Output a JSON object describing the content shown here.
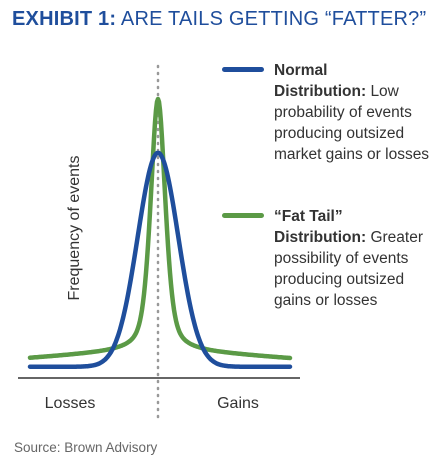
{
  "title_prefix": "EXHIBIT 1:",
  "title_main": "ARE TAILS GETTING “FATTER?”",
  "source": "Source: Brown Advisory",
  "colors": {
    "normal": "#1f4e9c",
    "fat_tail": "#5b9a46",
    "title": "#1f4e9c",
    "axis": "#333333",
    "center_line": "#999999"
  },
  "legend": [
    {
      "name": "Normal",
      "bold_lead": "Distribution:",
      "desc": "Low probability of events producing outsized market gains or losses",
      "color": "#1f4e9c"
    },
    {
      "name": "“Fat Tail”",
      "bold_lead": "Distribution:",
      "desc": "Greater possibility of events producing outsized gains or losses",
      "color": "#5b9a46"
    }
  ],
  "chart_data": {
    "type": "line",
    "xlabel": "",
    "ylabel": "Frequency of events",
    "x_categories": [
      "Losses",
      "Gains"
    ],
    "series": [
      {
        "name": "Normal Distribution",
        "shape": "normal",
        "peak": 0.83,
        "tail": 0.02,
        "width": 0.55
      },
      {
        "name": "“Fat Tail” Distribution",
        "shape": "fat-tail",
        "peak": 1.0,
        "tail": 0.085,
        "width": 0.32
      }
    ],
    "grid": false,
    "legend_position": "right"
  }
}
